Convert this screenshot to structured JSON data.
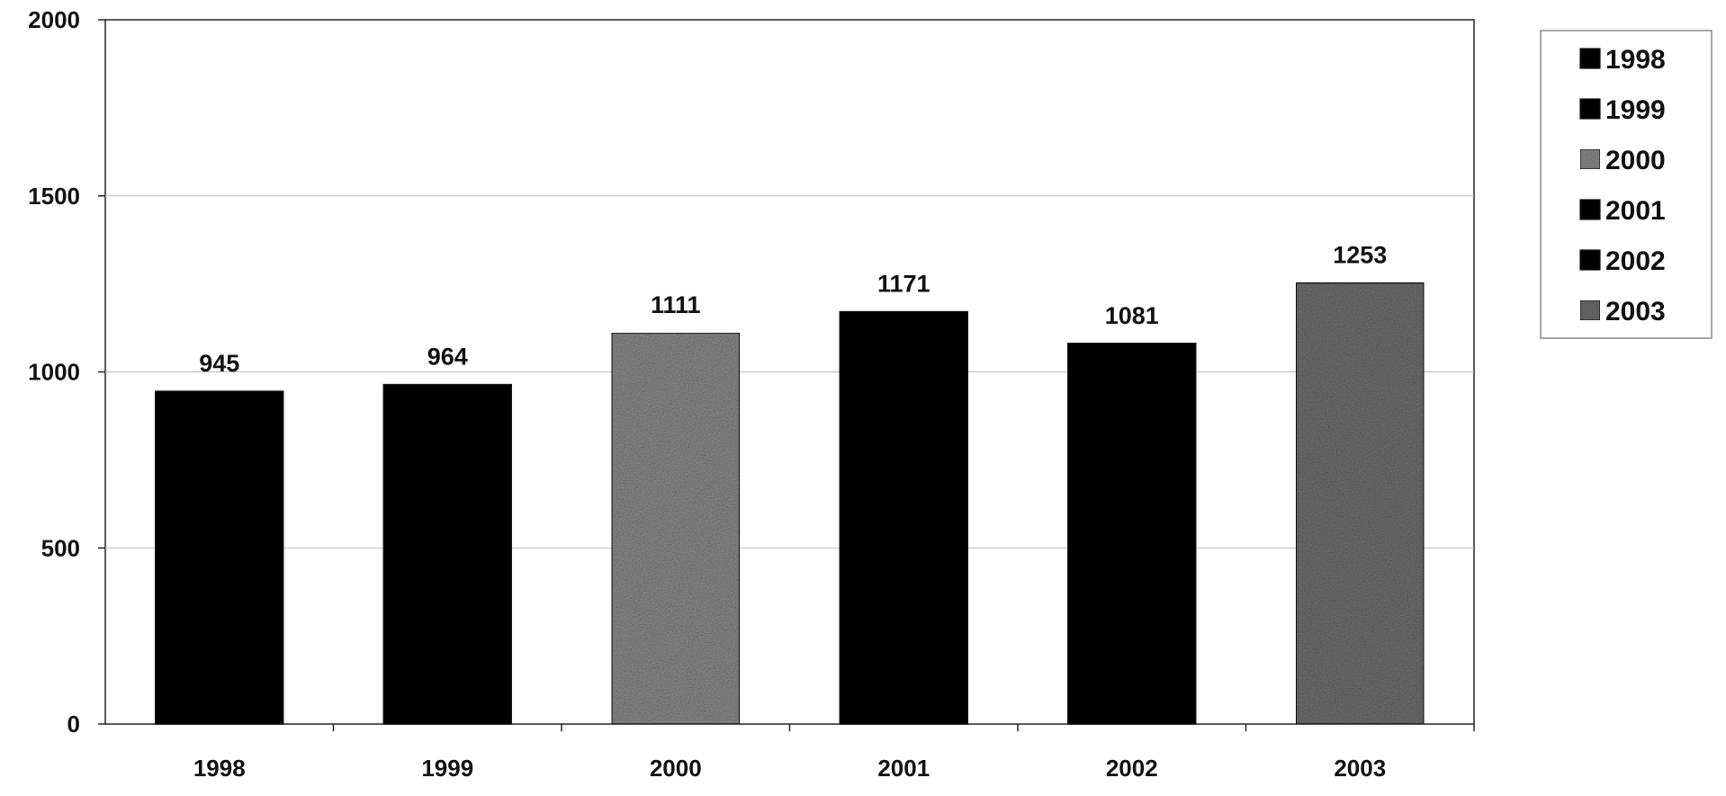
{
  "chart_data": {
    "type": "bar",
    "title": "",
    "xlabel": "",
    "ylabel": "",
    "categories": [
      "1998",
      "1999",
      "2000",
      "2001",
      "2002",
      "2003"
    ],
    "values": [
      945,
      964,
      1111,
      1171,
      1081,
      1253
    ],
    "data_labels": [
      "945",
      "964",
      "1111",
      "1171",
      "1081",
      "1253"
    ],
    "ylim": [
      0,
      2000
    ],
    "yticks": [
      0,
      500,
      1000,
      1500,
      2000
    ],
    "ytick_labels": [
      "0",
      "500",
      "1000",
      "1500",
      "2000"
    ],
    "grid": true,
    "legend_position": "right",
    "legend": [
      {
        "label": "1998",
        "color": "#000000",
        "pattern": "solid"
      },
      {
        "label": "1999",
        "color": "#000000",
        "pattern": "solid"
      },
      {
        "label": "2000",
        "color": "#8a8a8a",
        "pattern": "speckled"
      },
      {
        "label": "2001",
        "color": "#000000",
        "pattern": "solid"
      },
      {
        "label": "2002",
        "color": "#000000",
        "pattern": "solid"
      },
      {
        "label": "2003",
        "color": "#6e6e6e",
        "pattern": "speckled"
      }
    ],
    "bar_colors": [
      "#000000",
      "#000000",
      "#8a8a8a",
      "#000000",
      "#000000",
      "#6e6e6e"
    ]
  }
}
